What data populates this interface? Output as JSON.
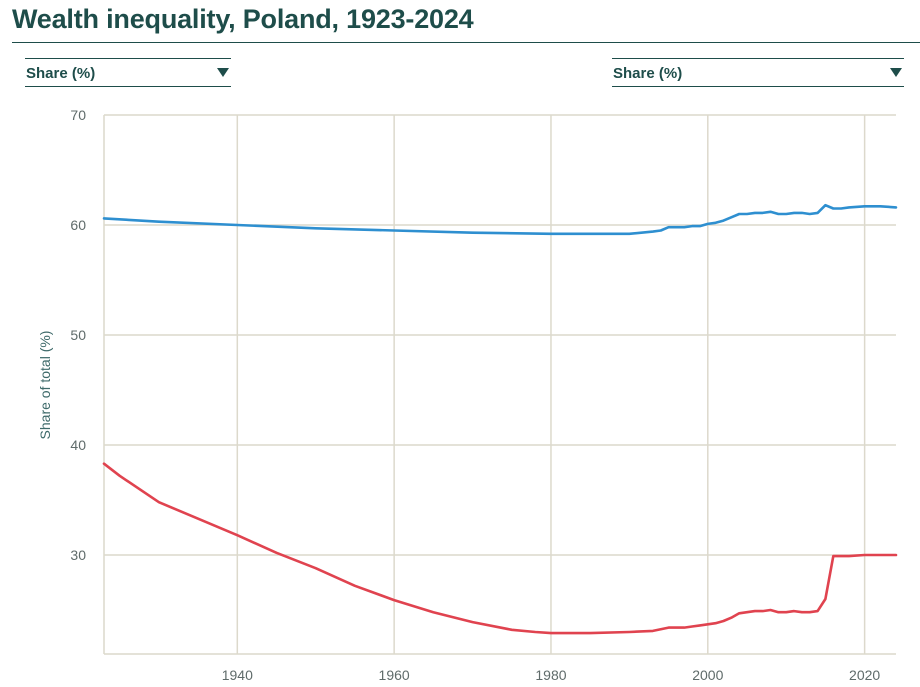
{
  "page": {
    "title": "Wealth inequality, Poland, 1923-2024"
  },
  "controls": {
    "left_select": {
      "label": "Share (%)",
      "icon": "caret-down-icon"
    },
    "right_select": {
      "label": "Share (%)",
      "icon": "caret-down-icon"
    }
  },
  "colors": {
    "accent": "#1e4d4a",
    "grid": "#dcd9cc",
    "series_blue": "#2e8fd0",
    "series_red": "#e0434f"
  },
  "chart_data": {
    "type": "line",
    "title": "Wealth inequality, Poland, 1923-2024",
    "xlabel": "",
    "ylabel": "Share of total (%)",
    "xlim": [
      1923,
      2024
    ],
    "ylim": [
      21,
      70
    ],
    "x_ticks": [
      1940,
      1960,
      1980,
      2000,
      2020
    ],
    "y_ticks": [
      30,
      40,
      50,
      60,
      70
    ],
    "grid": true,
    "series": [
      {
        "color": "#2e8fd0",
        "points": [
          [
            1923,
            60.6
          ],
          [
            1930,
            60.3
          ],
          [
            1940,
            60.0
          ],
          [
            1950,
            59.7
          ],
          [
            1960,
            59.5
          ],
          [
            1970,
            59.3
          ],
          [
            1980,
            59.2
          ],
          [
            1990,
            59.2
          ],
          [
            1993,
            59.4
          ],
          [
            1994,
            59.5
          ],
          [
            1995,
            59.8
          ],
          [
            1997,
            59.8
          ],
          [
            1998,
            59.9
          ],
          [
            1999,
            59.9
          ],
          [
            2000,
            60.1
          ],
          [
            2001,
            60.2
          ],
          [
            2002,
            60.4
          ],
          [
            2003,
            60.7
          ],
          [
            2004,
            61.0
          ],
          [
            2005,
            61.0
          ],
          [
            2006,
            61.1
          ],
          [
            2007,
            61.1
          ],
          [
            2008,
            61.2
          ],
          [
            2009,
            61.0
          ],
          [
            2010,
            61.0
          ],
          [
            2011,
            61.1
          ],
          [
            2012,
            61.1
          ],
          [
            2013,
            61.0
          ],
          [
            2014,
            61.1
          ],
          [
            2015,
            61.8
          ],
          [
            2016,
            61.5
          ],
          [
            2017,
            61.5
          ],
          [
            2018,
            61.6
          ],
          [
            2020,
            61.7
          ],
          [
            2022,
            61.7
          ],
          [
            2024,
            61.6
          ]
        ]
      },
      {
        "color": "#e0434f",
        "points": [
          [
            1923,
            38.3
          ],
          [
            1925,
            37.2
          ],
          [
            1930,
            34.8
          ],
          [
            1935,
            33.3
          ],
          [
            1940,
            31.8
          ],
          [
            1945,
            30.2
          ],
          [
            1950,
            28.8
          ],
          [
            1955,
            27.2
          ],
          [
            1960,
            25.9
          ],
          [
            1965,
            24.8
          ],
          [
            1970,
            23.9
          ],
          [
            1975,
            23.2
          ],
          [
            1978,
            23.0
          ],
          [
            1980,
            22.9
          ],
          [
            1985,
            22.9
          ],
          [
            1990,
            23.0
          ],
          [
            1993,
            23.1
          ],
          [
            1995,
            23.4
          ],
          [
            1997,
            23.4
          ],
          [
            1998,
            23.5
          ],
          [
            1999,
            23.6
          ],
          [
            2000,
            23.7
          ],
          [
            2001,
            23.8
          ],
          [
            2002,
            24.0
          ],
          [
            2003,
            24.3
          ],
          [
            2004,
            24.7
          ],
          [
            2005,
            24.8
          ],
          [
            2006,
            24.9
          ],
          [
            2007,
            24.9
          ],
          [
            2008,
            25.0
          ],
          [
            2009,
            24.8
          ],
          [
            2010,
            24.8
          ],
          [
            2011,
            24.9
          ],
          [
            2012,
            24.8
          ],
          [
            2013,
            24.8
          ],
          [
            2014,
            24.9
          ],
          [
            2015,
            26.0
          ],
          [
            2016,
            29.9
          ],
          [
            2017,
            29.9
          ],
          [
            2018,
            29.9
          ],
          [
            2020,
            30.0
          ],
          [
            2022,
            30.0
          ],
          [
            2024,
            30.0
          ]
        ]
      }
    ]
  }
}
